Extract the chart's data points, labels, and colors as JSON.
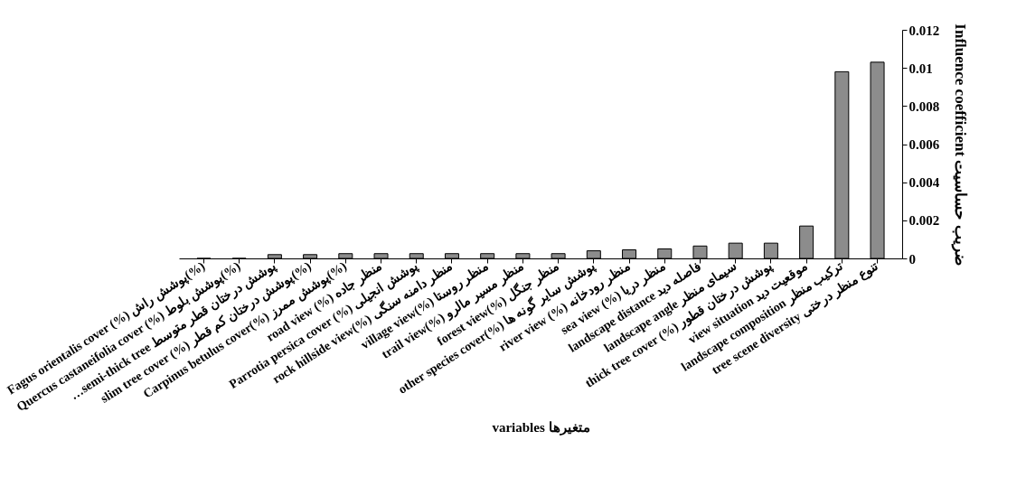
{
  "chart_data": {
    "type": "bar",
    "xlabel": "variables متغیرها",
    "ylabel": "Influence coefficient ضریب حساسیت",
    "categories": [
      "Fagus orientalis cover (%) پوشش راش(%)",
      "Quercus castaneifolia cover (%) پوشش بلوط(%)",
      "…semi-thick tree پوشش درختان قطر متوسط",
      "slim tree cover (%) پوشش درختان کم قطر(%)",
      "Carpinus betulus cover(%) پوشش ممرز(%)",
      "road view (%) منظر جاده",
      "Parrotia persica cover (%) پوشش انجیلی",
      "rock hillside view(%) منظر دامنه سنگی",
      "village view(%) منظر روستا",
      "trail view(%) منظر مسیر مالرو",
      "forest view(%) منظر جنگل",
      "other species cover(%) پوشش سایر گونه ها",
      "river view (%) منظر رودخانه",
      "sea view (%) منظر دریا",
      "landscape distance فاصله دید",
      "landscape angle سیمای منظر",
      "thick tree cover (%) پوشش درختان قطور",
      "view situation موقعیت دید",
      "landscape composition ترکیب منظر",
      "tree scene diversity تنوع منظر درختی"
    ],
    "values": [
      0,
      0,
      0.0002,
      0.0002,
      0.00025,
      0.00025,
      0.00025,
      0.00025,
      0.00025,
      0.00025,
      0.00025,
      0.0004,
      0.00045,
      0.0005,
      0.00065,
      0.0008,
      0.0008,
      0.0017,
      0.0098,
      0.0103
    ],
    "color": "#8c8c8c",
    "ylim": [
      0,
      0.012
    ],
    "yticks": [
      0,
      0.002,
      0.004,
      0.006,
      0.008,
      0.01,
      0.012
    ],
    "grid": false
  }
}
